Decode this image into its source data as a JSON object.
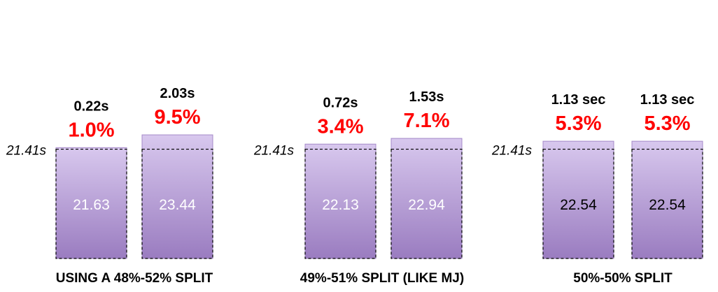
{
  "chart_data": [
    {
      "type": "bar",
      "categories": [
        "",
        ""
      ],
      "values": [
        21.63,
        23.44
      ],
      "value_labels": [
        "21.63",
        "23.44"
      ],
      "baseline_value": 21.41,
      "baseline_label": "21.41s",
      "time_labels": [
        "0.22s",
        "2.03s"
      ],
      "percent_labels": [
        "1.0%",
        "9.5%"
      ],
      "xlabel": "USING A 48%-52% SPLIT",
      "value_label_color": "#ffffff"
    },
    {
      "type": "bar",
      "categories": [
        "",
        ""
      ],
      "values": [
        22.13,
        22.94
      ],
      "value_labels": [
        "22.13",
        "22.94"
      ],
      "baseline_value": 21.41,
      "baseline_label": "21.41s",
      "time_labels": [
        "0.72s",
        "1.53s"
      ],
      "percent_labels": [
        "3.4%",
        "7.1%"
      ],
      "xlabel": "49%-51% SPLIT (LIKE MJ)",
      "value_label_color": "#ffffff"
    },
    {
      "type": "bar",
      "categories": [
        "",
        ""
      ],
      "values": [
        22.54,
        22.54
      ],
      "value_labels": [
        "22.54",
        "22.54"
      ],
      "baseline_value": 21.41,
      "baseline_label": "21.41s",
      "time_labels": [
        "1.13 sec",
        "1.13 sec"
      ],
      "percent_labels": [
        "5.3%",
        "5.3%"
      ],
      "xlabel": "50%-50% SPLIT",
      "value_label_color": "#000000"
    }
  ],
  "colors": {
    "bar_top": "#d8c8ee",
    "bar_bottom": "#9a7cc0",
    "bar_stroke": "#a48ac8",
    "percent": "#ff0000",
    "text": "#000000"
  }
}
